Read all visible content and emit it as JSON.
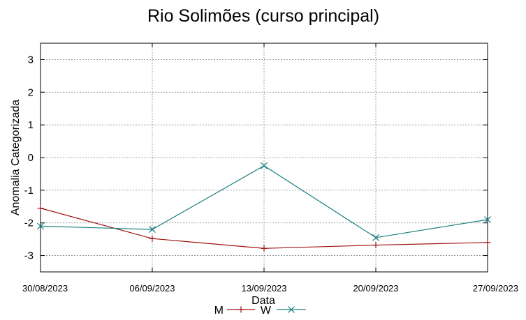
{
  "chart_data": {
    "type": "line",
    "title": "Rio Solimões (curso principal)",
    "xlabel": "Data",
    "ylabel": "Anomalia Categorizada",
    "x": [
      "30/08/2023",
      "06/09/2023",
      "13/09/2023",
      "20/09/2023",
      "27/09/2023"
    ],
    "ylim": [
      -3.5,
      3.5
    ],
    "yticks": [
      3,
      2,
      1,
      0,
      -1,
      -2,
      -3
    ],
    "grid": true,
    "legend": "bottom-center",
    "series": [
      {
        "name": "M",
        "color": "#a01010",
        "marker": "plus",
        "values": [
          -1.55,
          -2.48,
          -2.78,
          -2.68,
          -2.6
        ]
      },
      {
        "name": "W",
        "color": "#1a8080",
        "marker": "x",
        "values": [
          -2.1,
          -2.2,
          -0.25,
          -2.45,
          -1.9
        ]
      }
    ]
  }
}
